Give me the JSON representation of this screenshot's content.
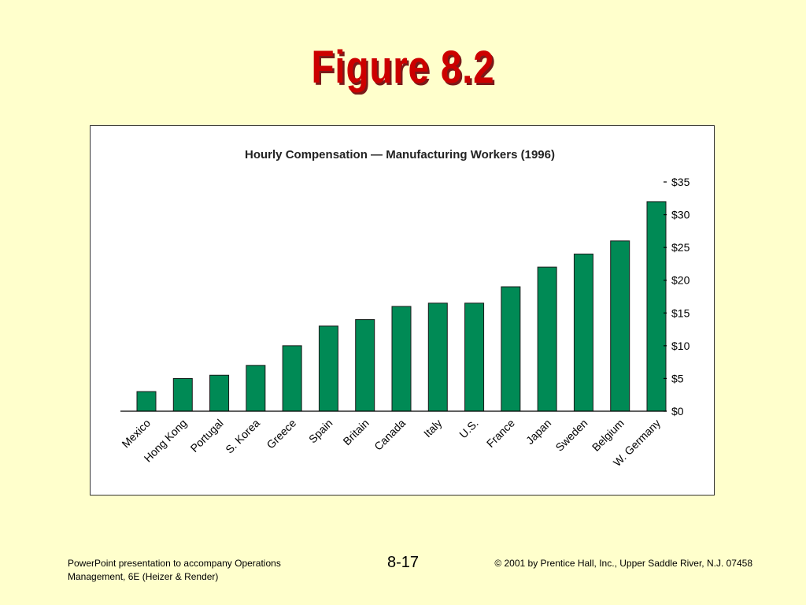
{
  "slide": {
    "title": "Figure 8.2"
  },
  "footer": {
    "left_line1": "PowerPoint presentation to accompany Operations",
    "left_line2": "Management, 6E (Heizer & Render)",
    "page_number": "8-17",
    "copyright": "© 2001 by Prentice Hall, Inc.,  Upper Saddle River, N.J. 07458"
  },
  "colors": {
    "background": "#ffffcc",
    "title": "#cc0000",
    "bar": "#008a55"
  },
  "chart_data": {
    "type": "bar",
    "title": "Hourly Compensation — Manufacturing Workers (1996)",
    "xlabel": "",
    "ylabel": "",
    "categories": [
      "Mexico",
      "Hong Kong",
      "Portugal",
      "S. Korea",
      "Greece",
      "Spain",
      "Britain",
      "Canada",
      "Italy",
      "U.S.",
      "France",
      "Japan",
      "Sweden",
      "Belgium",
      "W. Germany"
    ],
    "values": [
      3,
      5,
      5.5,
      7,
      10,
      13,
      14,
      16,
      16.5,
      16.5,
      19,
      22,
      24,
      26,
      32
    ],
    "ylim": [
      0,
      35
    ],
    "yticks": [
      0,
      5,
      10,
      15,
      20,
      25,
      30,
      35
    ],
    "ytick_labels": [
      "$0",
      "$5",
      "$10",
      "$15",
      "$20",
      "$25",
      "$30",
      "$35"
    ],
    "y_axis_side": "right",
    "grid": false,
    "legend": "none"
  }
}
